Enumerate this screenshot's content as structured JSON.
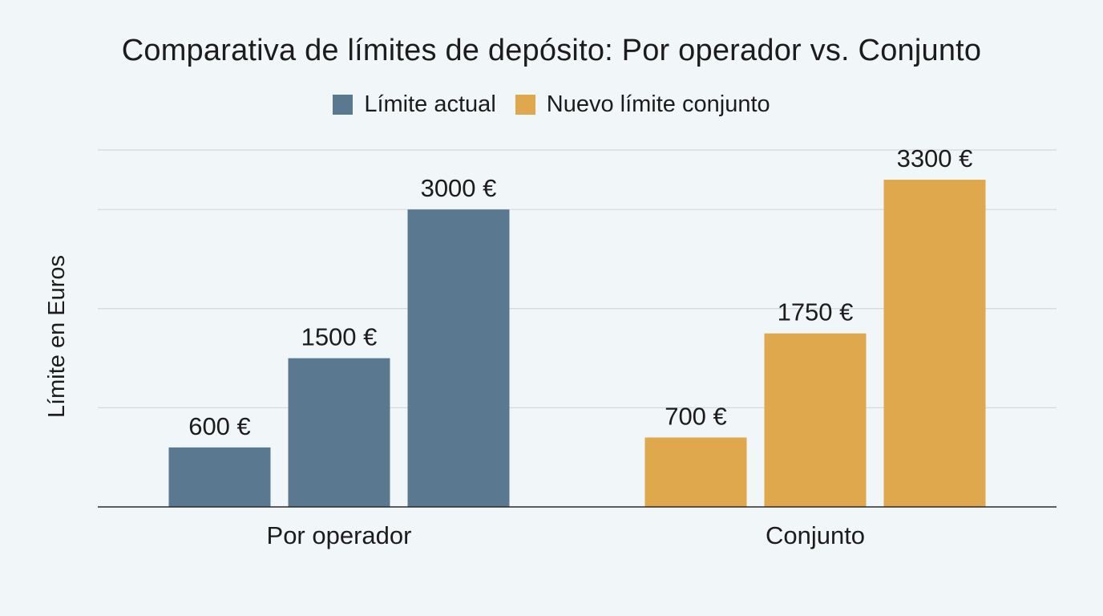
{
  "chart_data": {
    "type": "bar",
    "title": "Comparativa de límites de depósito: Por operador vs. Conjunto",
    "ylabel": "Límite en Euros",
    "xlabel": "",
    "ylim": [
      0,
      3600
    ],
    "grid": true,
    "legend_position": "top-center",
    "legend": [
      {
        "name": "Límite actual",
        "color": "#5b7891"
      },
      {
        "name": "Nuevo límite conjunto",
        "color": "#e0a84c"
      }
    ],
    "groups": [
      {
        "category": "Por operador",
        "series": "Límite actual",
        "color": "#5b7891",
        "values": [
          600,
          1500,
          3000
        ],
        "labels": [
          "600 €",
          "1500 €",
          "3000 €"
        ]
      },
      {
        "category": "Conjunto",
        "series": "Nuevo límite conjunto",
        "color": "#e0a84c",
        "values": [
          700,
          1750,
          3300
        ],
        "labels": [
          "700 €",
          "1750 €",
          "3300 €"
        ]
      }
    ]
  }
}
